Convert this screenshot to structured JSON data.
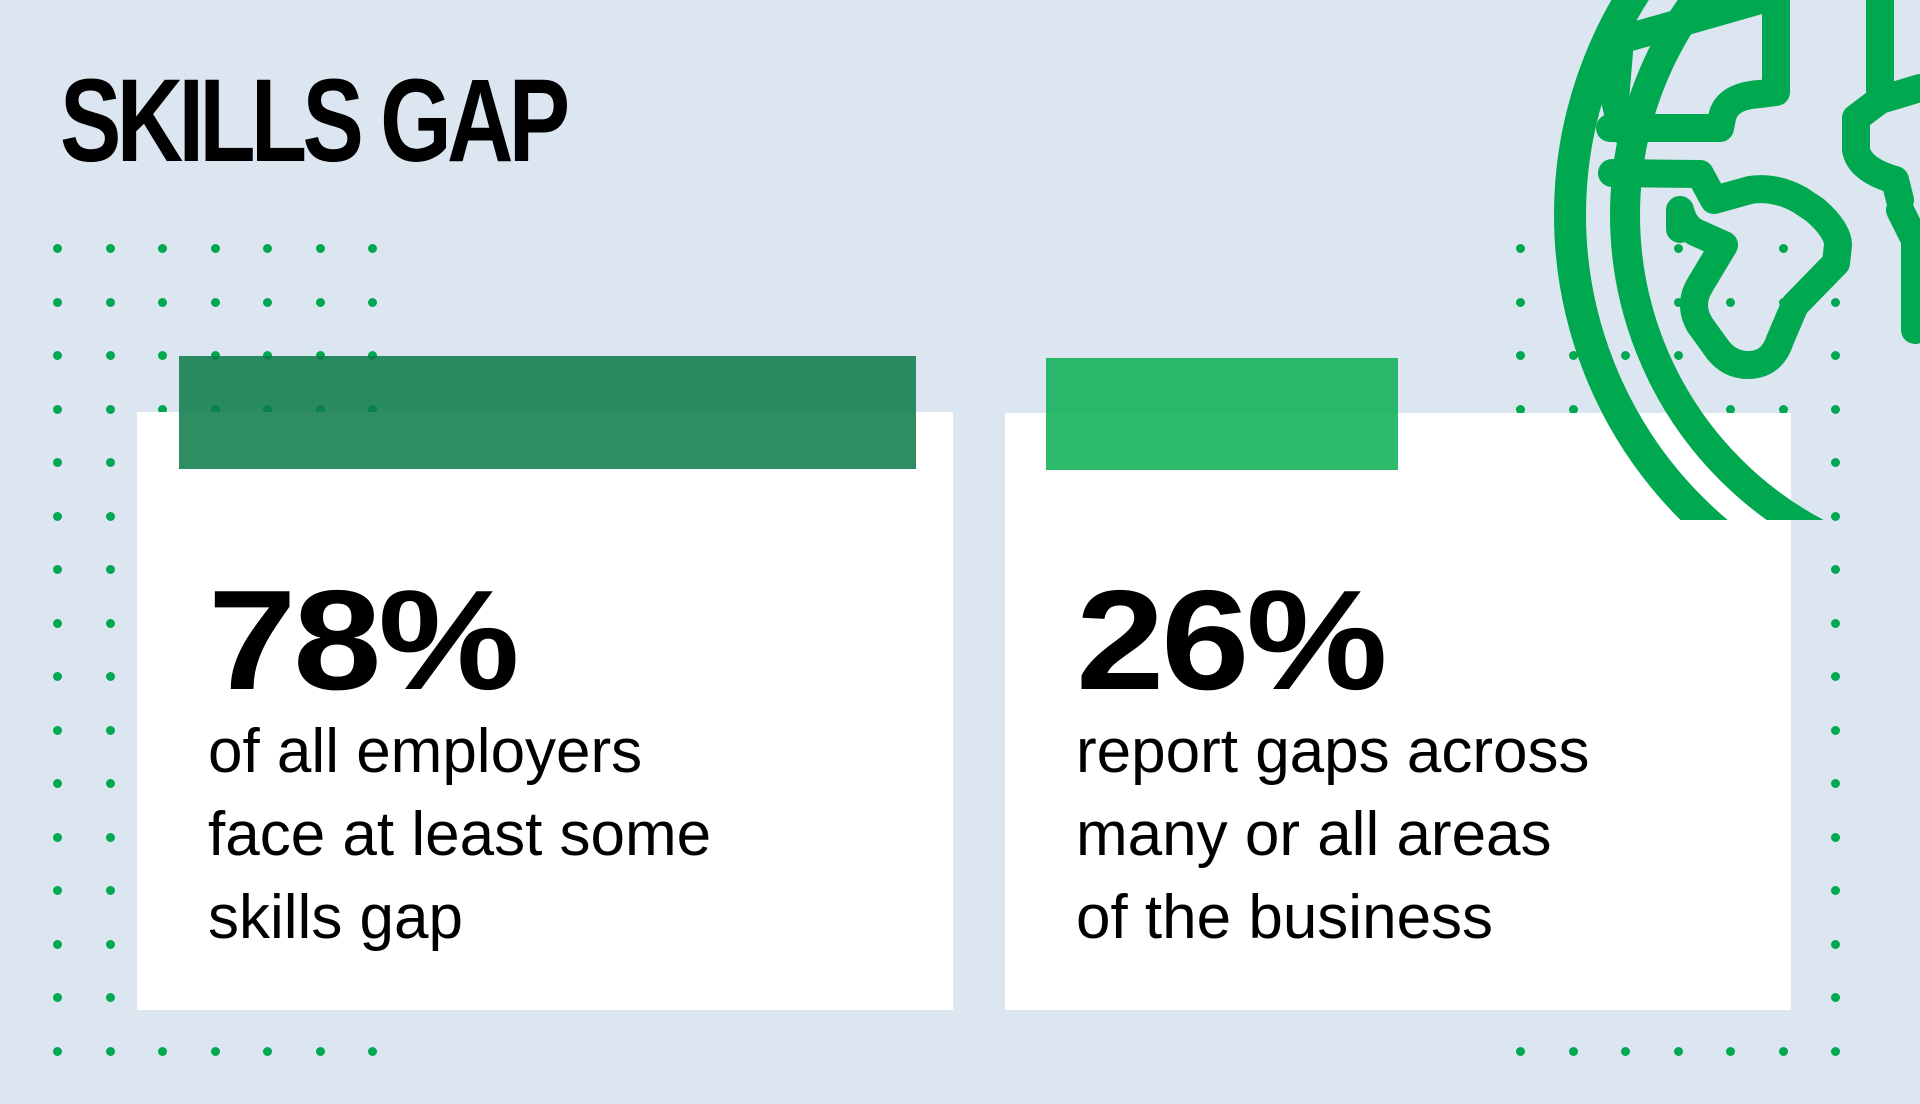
{
  "header": {
    "title": "SKILLS GAP"
  },
  "colors": {
    "background": "#dce6f0",
    "dots": "#00a84f",
    "globe": "#00a84f",
    "bar_dark": "#218a5e",
    "bar_light": "#27b866",
    "card": "#ffffff"
  },
  "stats": [
    {
      "value": "78%",
      "lines": [
        "of all employers",
        "face at least some",
        "skills gap"
      ]
    },
    {
      "value": "26%",
      "lines": [
        "report gaps across",
        "many or all areas",
        "of the business"
      ]
    }
  ],
  "icons": {
    "decoration": "globe-icon"
  }
}
